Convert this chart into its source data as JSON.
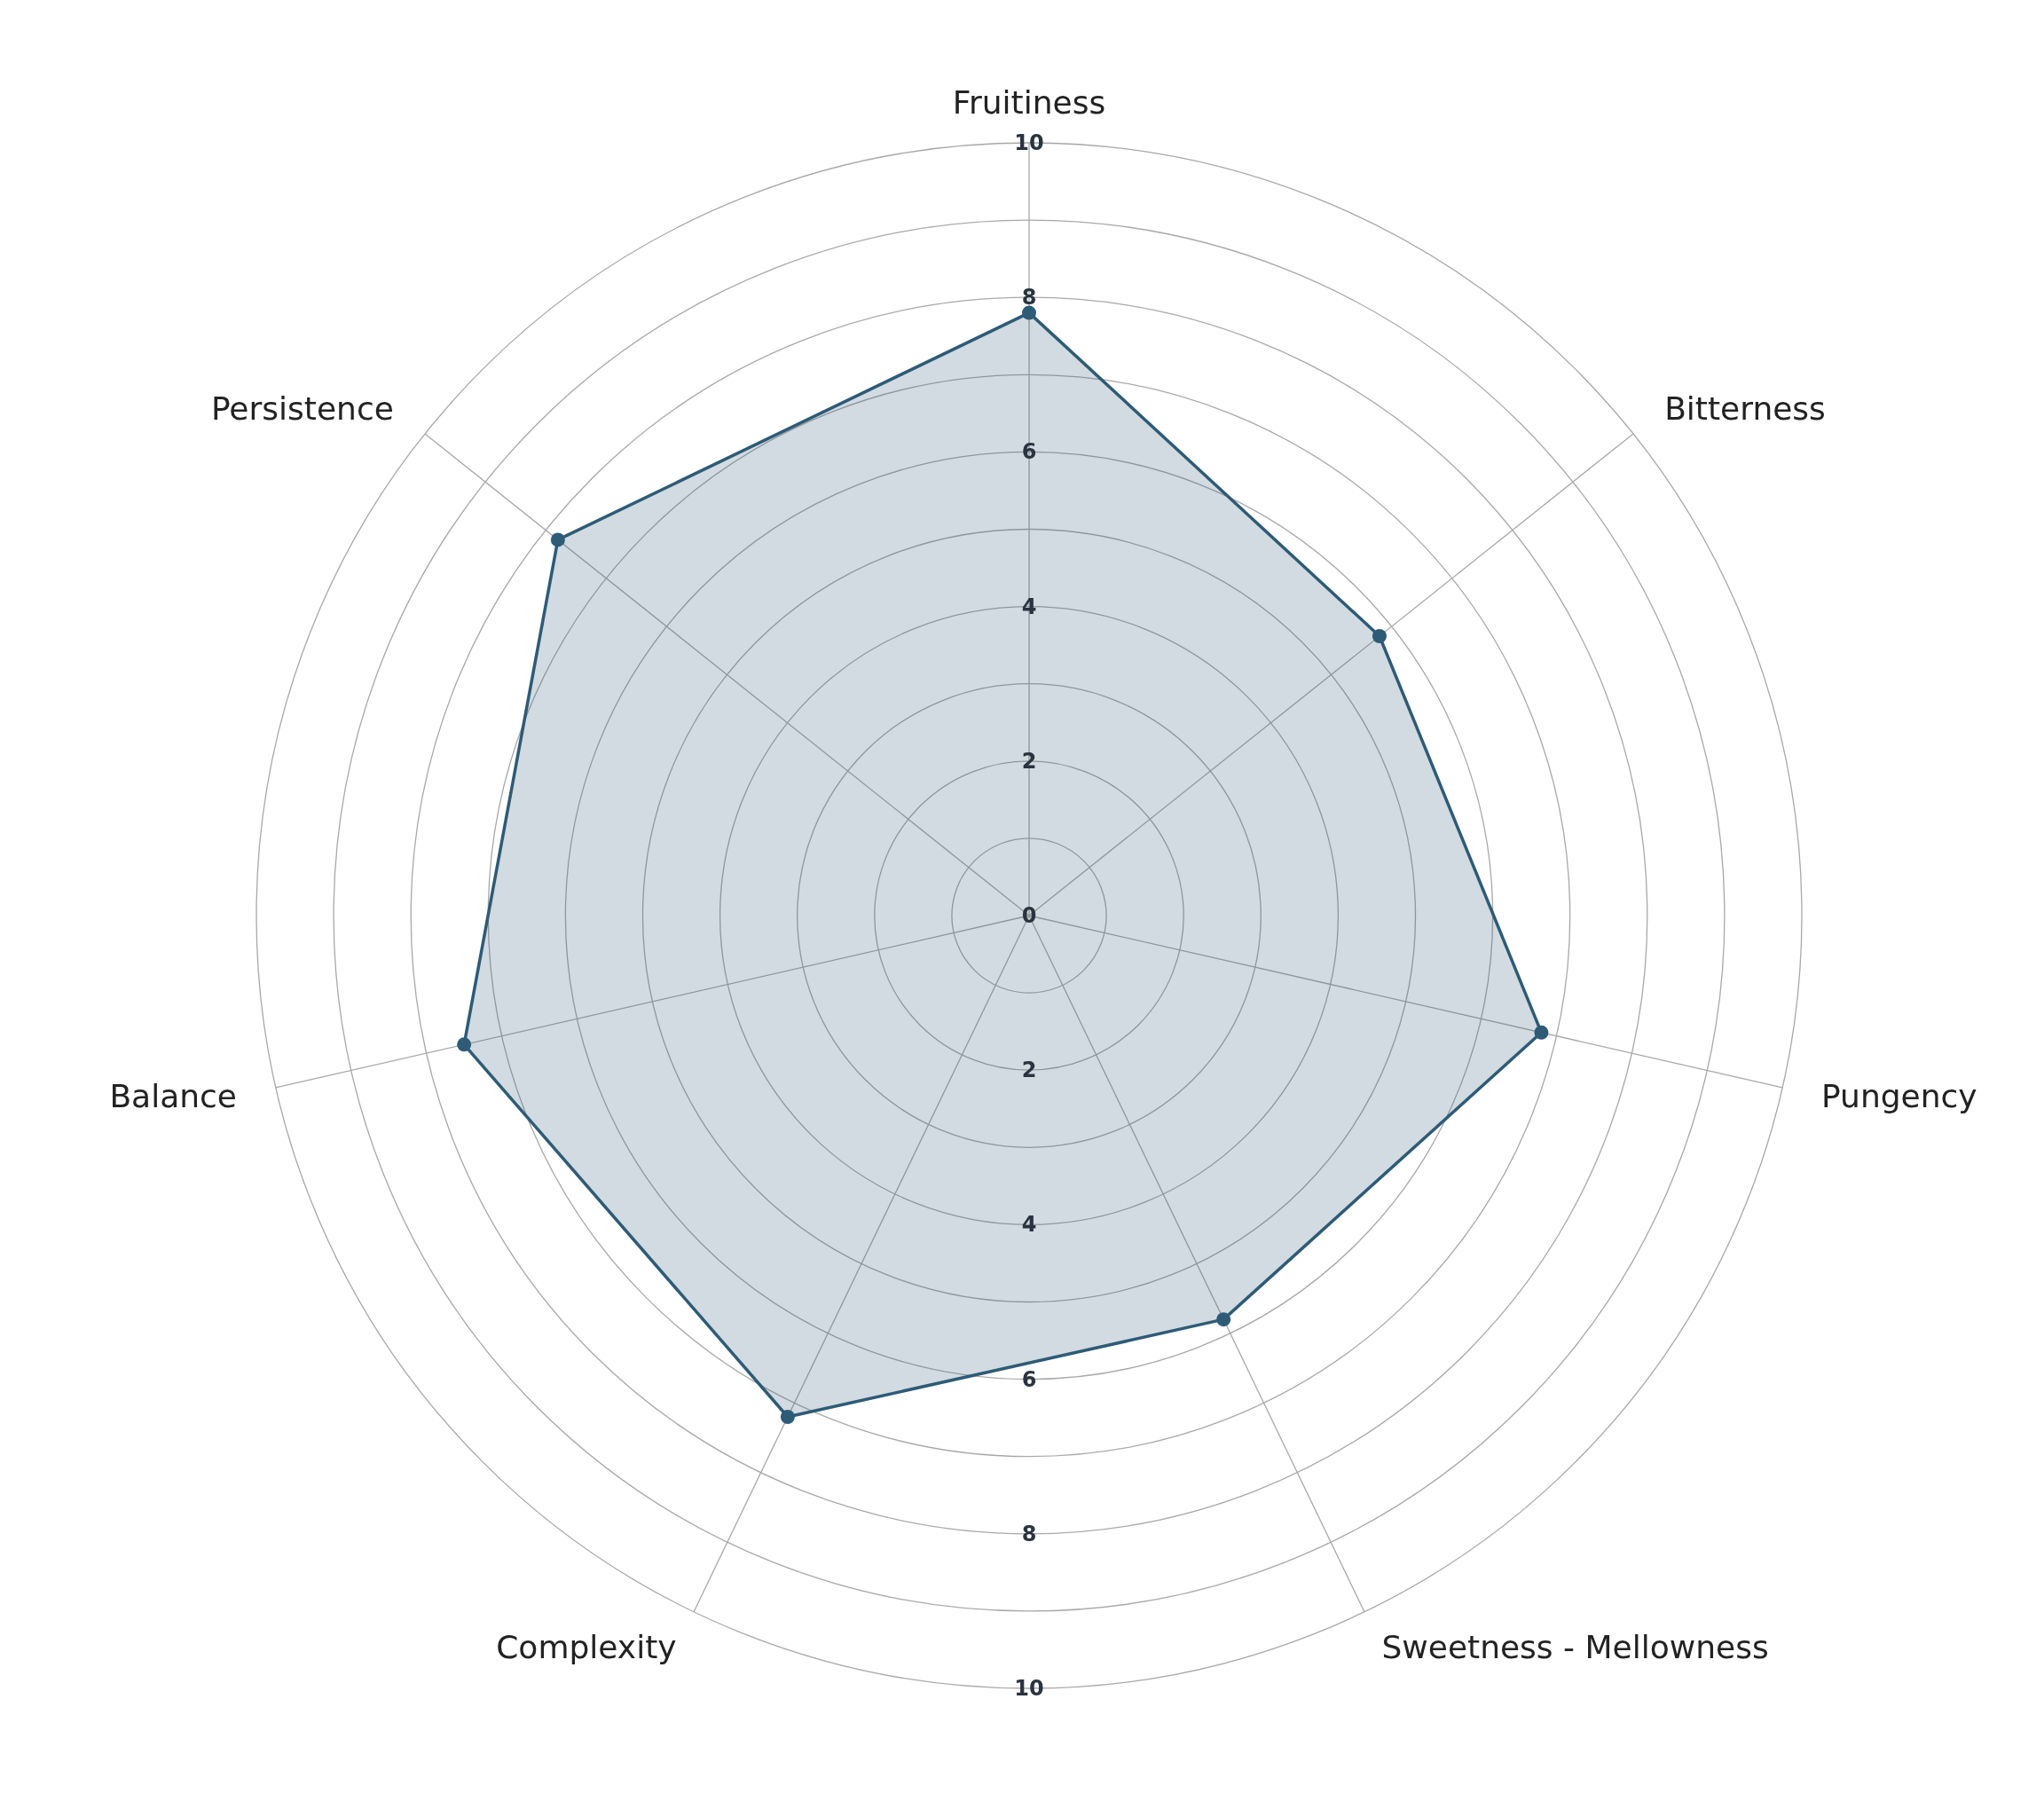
{
  "chart_data": {
    "type": "radar",
    "categories": [
      "Fruitiness",
      "Bitterness",
      "Pungency",
      "Sweetness - Mellowness",
      "Complexity",
      "Balance",
      "Persistence"
    ],
    "series": [
      {
        "color": "#2e5b76",
        "values": [
          7.8,
          5.8,
          6.8,
          5.8,
          7.2,
          7.5,
          7.8
        ]
      }
    ],
    "ylim": [
      0,
      10
    ],
    "yticks": [
      0,
      2,
      4,
      6,
      8,
      10
    ],
    "annotations": [
      "2",
      "4",
      "6",
      "8",
      "10"
    ],
    "marker": "circle",
    "grid": true
  }
}
